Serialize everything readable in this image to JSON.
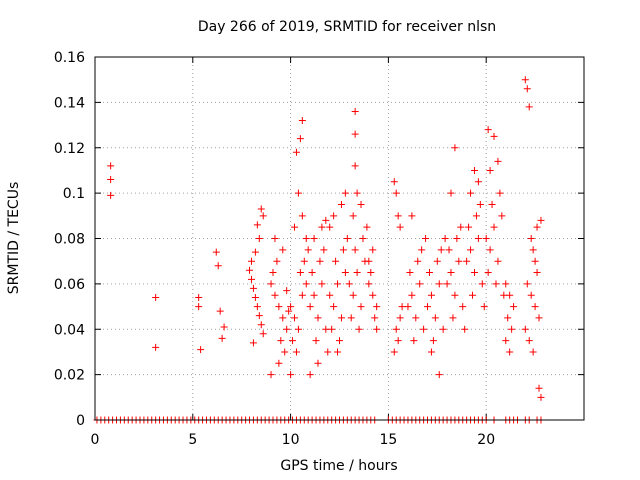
{
  "chart_data": {
    "type": "scatter",
    "title": "Day 266 of 2019, SRMTID for receiver nlsn",
    "xlabel": "GPS time / hours",
    "ylabel": "SRMTID / TECUs",
    "xlim": [
      0,
      25
    ],
    "ylim": [
      0,
      0.16
    ],
    "xticks": [
      "0",
      "5",
      "10",
      "15",
      "20"
    ],
    "xtick_values": [
      0,
      5,
      10,
      15,
      20
    ],
    "yticks": [
      "0",
      "0.02",
      "0.04",
      "0.06",
      "0.08",
      "0.1",
      "0.12",
      "0.14",
      "0.16"
    ],
    "ytick_values": [
      0,
      0.02,
      0.04,
      0.06,
      0.08,
      0.1,
      0.12,
      0.14,
      0.16
    ],
    "grid": true,
    "marker": "plus",
    "series": [
      {
        "color": "#ff0000",
        "x": [
          0.8,
          0.8,
          0.8,
          3.1,
          3.1,
          5.3,
          5.3,
          5.4,
          6.2,
          6.3,
          6.4,
          6.6,
          6.5,
          7.9,
          8.0,
          8.1,
          8.2,
          8.3,
          8.4,
          8.5,
          8.6,
          8.0,
          8.2,
          8.4,
          8.6,
          8.3,
          8.1,
          8.5,
          9.0,
          9.2,
          9.4,
          9.6,
          9.8,
          9.1,
          9.3,
          9.5,
          9.7,
          9.9,
          9.2,
          9.6,
          9.4,
          9.0,
          9.8,
          10.0,
          10.2,
          10.4,
          10.6,
          10.8,
          10.1,
          10.3,
          10.5,
          10.7,
          10.9,
          10.2,
          10.6,
          10.4,
          10.0,
          10.8,
          10.5,
          10.6,
          10.3,
          11.0,
          11.2,
          11.4,
          11.6,
          11.8,
          11.1,
          11.3,
          11.5,
          11.7,
          11.9,
          11.2,
          11.6,
          11.4,
          11.0,
          11.8,
          12.0,
          12.2,
          12.4,
          12.6,
          12.8,
          12.1,
          12.3,
          12.5,
          12.7,
          12.9,
          12.2,
          12.6,
          12.4,
          12.0,
          12.8,
          13.0,
          13.2,
          13.4,
          13.6,
          13.8,
          13.1,
          13.3,
          13.5,
          13.7,
          13.9,
          13.2,
          13.6,
          13.3,
          13.3,
          13.3,
          13.4,
          14.0,
          14.2,
          14.4,
          14.1,
          14.3,
          14.0,
          14.2,
          14.4,
          15.3,
          15.4,
          15.5,
          15.6,
          15.7,
          15.3,
          15.5,
          15.4,
          15.6,
          16.0,
          16.2,
          16.4,
          16.6,
          16.8,
          16.1,
          16.3,
          16.5,
          16.7,
          16.9,
          16.2,
          17.0,
          17.2,
          17.4,
          17.6,
          17.8,
          17.1,
          17.3,
          17.5,
          17.7,
          17.9,
          17.2,
          17.6,
          18.0,
          18.2,
          18.4,
          18.6,
          18.8,
          18.1,
          18.3,
          18.5,
          18.7,
          18.9,
          18.2,
          18.4,
          19.0,
          19.2,
          19.4,
          19.6,
          19.8,
          19.1,
          19.3,
          19.5,
          19.7,
          19.9,
          19.2,
          19.6,
          19.4,
          20.0,
          20.2,
          20.4,
          20.6,
          20.8,
          20.1,
          20.3,
          20.5,
          20.7,
          20.9,
          20.2,
          20.6,
          20.4,
          20.1,
          21.0,
          21.2,
          21.4,
          21.1,
          21.3,
          21.0,
          21.2,
          22.0,
          22.1,
          22.2,
          22.3,
          22.4,
          22.5,
          22.6,
          22.1,
          22.3,
          22.5,
          22.7,
          22.0,
          22.2,
          22.4,
          22.6,
          22.8,
          22.7,
          22.8
        ],
        "y": [
          0.112,
          0.106,
          0.099,
          0.054,
          0.032,
          0.054,
          0.05,
          0.031,
          0.074,
          0.068,
          0.048,
          0.041,
          0.036,
          0.066,
          0.062,
          0.058,
          0.054,
          0.05,
          0.046,
          0.042,
          0.038,
          0.07,
          0.074,
          0.08,
          0.09,
          0.086,
          0.034,
          0.093,
          0.06,
          0.055,
          0.05,
          0.045,
          0.04,
          0.065,
          0.07,
          0.035,
          0.03,
          0.048,
          0.08,
          0.075,
          0.025,
          0.02,
          0.057,
          0.05,
          0.045,
          0.04,
          0.055,
          0.06,
          0.035,
          0.03,
          0.065,
          0.07,
          0.075,
          0.085,
          0.09,
          0.1,
          0.02,
          0.08,
          0.124,
          0.132,
          0.118,
          0.05,
          0.055,
          0.045,
          0.06,
          0.04,
          0.065,
          0.035,
          0.07,
          0.075,
          0.03,
          0.08,
          0.085,
          0.025,
          0.02,
          0.088,
          0.055,
          0.05,
          0.06,
          0.045,
          0.065,
          0.04,
          0.07,
          0.035,
          0.075,
          0.08,
          0.09,
          0.095,
          0.03,
          0.085,
          0.1,
          0.06,
          0.055,
          0.065,
          0.05,
          0.07,
          0.045,
          0.075,
          0.04,
          0.08,
          0.085,
          0.09,
          0.095,
          0.136,
          0.126,
          0.112,
          0.1,
          0.06,
          0.055,
          0.05,
          0.065,
          0.045,
          0.07,
          0.075,
          0.04,
          0.105,
          0.1,
          0.09,
          0.085,
          0.05,
          0.03,
          0.035,
          0.04,
          0.045,
          0.05,
          0.055,
          0.045,
          0.06,
          0.04,
          0.065,
          0.035,
          0.07,
          0.075,
          0.08,
          0.09,
          0.05,
          0.055,
          0.045,
          0.06,
          0.04,
          0.065,
          0.035,
          0.07,
          0.075,
          0.08,
          0.03,
          0.02,
          0.06,
          0.065,
          0.055,
          0.07,
          0.05,
          0.075,
          0.045,
          0.08,
          0.085,
          0.04,
          0.1,
          0.12,
          0.07,
          0.075,
          0.065,
          0.08,
          0.06,
          0.085,
          0.055,
          0.09,
          0.095,
          0.05,
          0.1,
          0.105,
          0.11,
          0.08,
          0.075,
          0.085,
          0.07,
          0.09,
          0.065,
          0.095,
          0.06,
          0.1,
          0.055,
          0.11,
          0.114,
          0.125,
          0.128,
          0.06,
          0.055,
          0.05,
          0.045,
          0.04,
          0.035,
          0.03,
          0.15,
          0.146,
          0.138,
          0.08,
          0.075,
          0.07,
          0.065,
          0.06,
          0.055,
          0.05,
          0.045,
          0.04,
          0.035,
          0.03,
          0.085,
          0.088,
          0.014,
          0.01
        ],
        "zero_x": [
          0.1,
          0.3,
          0.5,
          0.7,
          0.9,
          1.1,
          1.3,
          1.5,
          1.7,
          1.9,
          2.1,
          2.3,
          2.5,
          2.7,
          2.9,
          3.1,
          3.3,
          3.5,
          3.7,
          3.9,
          4.1,
          4.3,
          4.5,
          4.7,
          4.9,
          5.1,
          5.3,
          5.5,
          5.7,
          5.9,
          6.1,
          6.3,
          6.5,
          6.7,
          6.9,
          7.1,
          7.3,
          7.5,
          7.7,
          7.9,
          8.1,
          8.3,
          8.5,
          8.7,
          8.9,
          9.1,
          9.3,
          9.5,
          9.7,
          9.9,
          10.1,
          10.3,
          10.5,
          10.7,
          10.9,
          11.1,
          11.3,
          11.5,
          11.7,
          11.9,
          12.1,
          12.3,
          12.5,
          12.7,
          12.9,
          13.1,
          13.3,
          13.5,
          13.7,
          13.9,
          14.1,
          14.3,
          15.0,
          15.2,
          15.4,
          15.6,
          15.8,
          16.0,
          16.2,
          16.4,
          16.6,
          16.8,
          17.0,
          17.2,
          17.4,
          17.6,
          17.8,
          18.0,
          18.2,
          18.4,
          18.6,
          18.8,
          19.0,
          19.2,
          19.4,
          19.6,
          19.8,
          20.0,
          20.4,
          21.0,
          21.2,
          21.4,
          21.6,
          22.0,
          22.2,
          22.6,
          22.8
        ]
      }
    ]
  }
}
